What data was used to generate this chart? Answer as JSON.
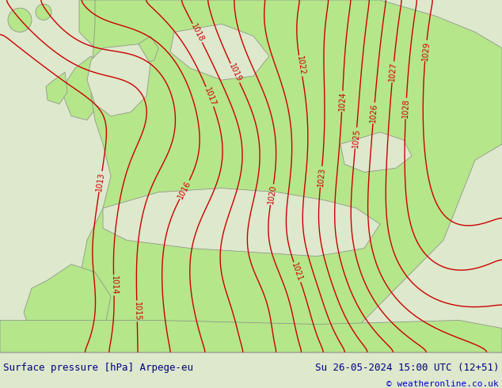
{
  "title_left": "Surface pressure [hPa] Arpege-eu",
  "title_right": "Su 26-05-2024 15:00 UTC (12+51)",
  "credit": "© weatheronline.co.uk",
  "land_color": "#b5e68a",
  "sea_color": "#dde8cc",
  "contour_color": "#cc0000",
  "label_color": "#cc0000",
  "coast_color": "#888888",
  "bottom_bar_color": "#ffffff",
  "title_color": "#000080",
  "credit_color": "#0000cc",
  "figsize": [
    6.34,
    4.9
  ],
  "dpi": 100,
  "pressure_min": 1013,
  "pressure_max": 1029
}
